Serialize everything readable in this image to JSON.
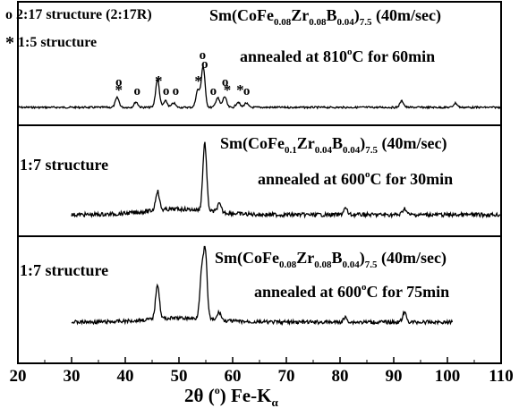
{
  "chart_data": {
    "type": "line",
    "title": "",
    "x_axis": {
      "min": 20,
      "max": 110,
      "tick_labels": [
        "20",
        "30",
        "40",
        "50",
        "60",
        "70",
        "80",
        "90",
        "100",
        "110"
      ],
      "label_prefix": "2θ (",
      "label_degree": "o",
      "label_mid": ") Fe-K",
      "label_sub": "α"
    },
    "y_axis": {
      "ticks_shown": false,
      "label": ""
    },
    "legend_markers": [
      {
        "symbol": "o",
        "text": "2:17 structure (2:17R)"
      },
      {
        "symbol": "*",
        "text": "1:5 structure"
      }
    ],
    "panels": [
      {
        "structure_label": "",
        "composition": {
          "pre": "Sm(CoFe",
          "s1": "0.08",
          "m1": "Zr",
          "s2": "0.08",
          "m2": "B",
          "s3": "0.04",
          "m3": ")",
          "s4": "7.5",
          "post": " (40m/sec)"
        },
        "anneal": {
          "pre": "annealed at 810",
          "sup": "o",
          "post": "C for 60min"
        },
        "x_range": [
          20,
          110
        ],
        "peaks": [
          {
            "x": 38.5,
            "h": 0.9
          },
          {
            "x": 42,
            "h": 0.5
          },
          {
            "x": 46,
            "h": 2.6
          },
          {
            "x": 47.5,
            "h": 0.6
          },
          {
            "x": 49,
            "h": 0.4
          },
          {
            "x": 53.5,
            "h": 1.6
          },
          {
            "x": 54.5,
            "h": 3.8
          },
          {
            "x": 57.2,
            "h": 0.9
          },
          {
            "x": 58.5,
            "h": 1.0
          },
          {
            "x": 61,
            "h": 0.5
          },
          {
            "x": 62.5,
            "h": 0.4
          },
          {
            "x": 91.5,
            "h": 0.6
          },
          {
            "x": 101.5,
            "h": 0.4
          }
        ],
        "markers": [
          {
            "x": 38.8,
            "symbol": "o",
            "level": 2
          },
          {
            "x": 38.8,
            "symbol": "*",
            "level": 1
          },
          {
            "x": 42.2,
            "symbol": "o",
            "level": 1
          },
          {
            "x": 46.2,
            "symbol": "*",
            "level": 2
          },
          {
            "x": 47.6,
            "symbol": "o",
            "level": 1
          },
          {
            "x": 49.4,
            "symbol": "o",
            "level": 1
          },
          {
            "x": 53.6,
            "symbol": "*",
            "level": 2
          },
          {
            "x": 54.4,
            "symbol": "o",
            "level": 5
          },
          {
            "x": 54.8,
            "symbol": "o",
            "level": 4
          },
          {
            "x": 56.4,
            "symbol": "o",
            "level": 1
          },
          {
            "x": 58.6,
            "symbol": "o",
            "level": 2
          },
          {
            "x": 59.0,
            "symbol": "*",
            "level": 1
          },
          {
            "x": 61.4,
            "symbol": "*",
            "level": 1
          },
          {
            "x": 62.6,
            "symbol": "o",
            "level": 1
          }
        ]
      },
      {
        "structure_label": "1:7 structure",
        "composition": {
          "pre": "Sm(CoFe",
          "s1": "0.1",
          "m1": "Zr",
          "s2": "0.04",
          "m2": "B",
          "s3": "0.04",
          "m3": ")",
          "s4": "7.5",
          "post": " (40m/sec)"
        },
        "anneal": {
          "pre": "annealed at 600",
          "sup": "o",
          "post": "C for 30min"
        },
        "x_range": [
          30,
          110
        ],
        "peaks": [
          {
            "x": 46,
            "h": 1.2
          },
          {
            "x": 54.8,
            "h": 4.2
          },
          {
            "x": 57.5,
            "h": 0.5
          },
          {
            "x": 81,
            "h": 0.4
          },
          {
            "x": 92,
            "h": 0.4
          }
        ],
        "markers": []
      },
      {
        "structure_label": "1:7 structure",
        "composition": {
          "pre": "Sm(CoFe",
          "s1": "0.08",
          "m1": "Zr",
          "s2": "0.08",
          "m2": "B",
          "s3": "0.04",
          "m3": ")",
          "s4": "7.5",
          "post": " (40m/sec)"
        },
        "anneal": {
          "pre": "annealed at 600",
          "sup": "o",
          "post": "C for 75min"
        },
        "x_range": [
          30,
          101
        ],
        "peaks": [
          {
            "x": 46,
            "h": 3.0
          },
          {
            "x": 54.2,
            "h": 3.6
          },
          {
            "x": 54.9,
            "h": 5.6
          },
          {
            "x": 57.5,
            "h": 0.7
          },
          {
            "x": 81,
            "h": 0.4
          },
          {
            "x": 92,
            "h": 0.8
          }
        ],
        "markers": []
      }
    ]
  }
}
